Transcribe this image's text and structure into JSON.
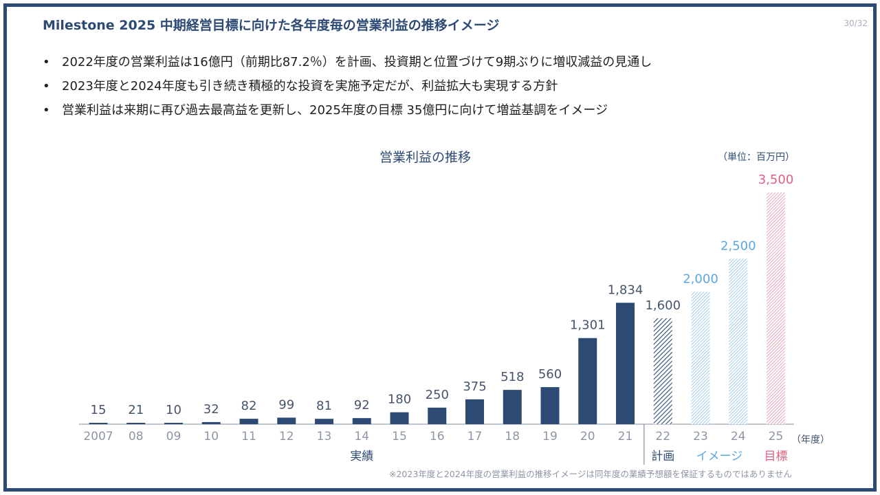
{
  "header": {
    "title": "Milestone 2025 中期経営目標に向けた各年度毎の営業利益の推移イメージ",
    "page_number": "30/32"
  },
  "bullets": [
    "2022年度の営業利益は16億円（前期比87.2％）を計画、投資期と位置づけて9期ぶりに増収減益の見通し",
    "2023年度と2024年度も引き続き積極的な投資を実施予定だが、利益拡大も実現する方針",
    "営業利益は来期に再び過去最高益を更新し、2025年度の目標 35億円に向けて増益基調をイメージ"
  ],
  "bullet_symbol": "•",
  "footnote": "※2023年度と2024年度の営業利益の推移イメージは同年度の業績予想額を保証するものではありません",
  "colors": {
    "navy": "#2c4a74",
    "image_blue": "#5aa7e0",
    "target_pink": "#e0607e",
    "axis_label_gray": "#8d96a3"
  },
  "chart_data": {
    "type": "bar",
    "title": "営業利益の推移",
    "unit": "（単位：百万円）",
    "xlabel": "（年度）",
    "ylim": [
      0,
      3600
    ],
    "categories": [
      "2007",
      "08",
      "09",
      "10",
      "11",
      "12",
      "13",
      "14",
      "15",
      "16",
      "17",
      "18",
      "19",
      "20",
      "21",
      "22",
      "23",
      "24",
      "25"
    ],
    "values": [
      15,
      21,
      10,
      32,
      82,
      99,
      81,
      92,
      180,
      250,
      375,
      518,
      560,
      1301,
      1834,
      1600,
      2000,
      2500,
      3500
    ],
    "value_labels": [
      "15",
      "21",
      "10",
      "32",
      "82",
      "99",
      "81",
      "92",
      "180",
      "250",
      "375",
      "518",
      "560",
      "1,301",
      "1,834",
      "1,600",
      "2,000",
      "2,500",
      "3,500"
    ],
    "bar_kinds": [
      "actual",
      "actual",
      "actual",
      "actual",
      "actual",
      "actual",
      "actual",
      "actual",
      "actual",
      "actual",
      "actual",
      "actual",
      "actual",
      "actual",
      "actual",
      "plan",
      "image",
      "image",
      "target"
    ],
    "groups": [
      {
        "label": "実績",
        "from": 0,
        "to": 14,
        "color": "#2c4a74"
      },
      {
        "label": "計画",
        "from": 15,
        "to": 15,
        "color": "#2c4a74"
      },
      {
        "label": "イメージ",
        "from": 16,
        "to": 17,
        "color": "#5aa7e0"
      },
      {
        "label": "目標",
        "from": 18,
        "to": 18,
        "color": "#e0607e"
      }
    ],
    "grid": false,
    "legend": "none"
  }
}
